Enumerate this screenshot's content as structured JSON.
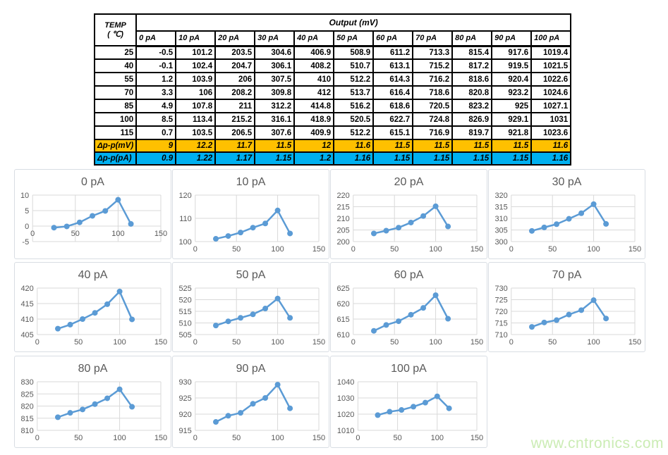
{
  "table": {
    "corner_header": {
      "line1": "TEMP",
      "line2": "( ℃)"
    },
    "output_header": "Output (mV)",
    "column_headers": [
      "0 pA",
      "10 pA",
      "20 pA",
      "30 pA",
      "40 pA",
      "50 pA",
      "60 pA",
      "70 pA",
      "80 pA",
      "90 pA",
      "100 pA"
    ],
    "rows": [
      {
        "temp": "25",
        "values": [
          "-0.5",
          "101.2",
          "203.5",
          "304.6",
          "406.9",
          "508.9",
          "611.2",
          "713.3",
          "815.4",
          "917.6",
          "1019.4"
        ]
      },
      {
        "temp": "40",
        "values": [
          "-0.1",
          "102.4",
          "204.7",
          "306.1",
          "408.2",
          "510.7",
          "613.1",
          "715.2",
          "817.2",
          "919.5",
          "1021.5"
        ]
      },
      {
        "temp": "55",
        "values": [
          "1.2",
          "103.9",
          "206",
          "307.5",
          "410",
          "512.2",
          "614.3",
          "716.2",
          "818.6",
          "920.4",
          "1022.6"
        ]
      },
      {
        "temp": "70",
        "values": [
          "3.3",
          "106",
          "208.2",
          "309.8",
          "412",
          "513.7",
          "616.4",
          "718.6",
          "820.8",
          "923.2",
          "1024.6"
        ]
      },
      {
        "temp": "85",
        "values": [
          "4.9",
          "107.8",
          "211",
          "312.2",
          "414.8",
          "516.2",
          "618.6",
          "720.5",
          "823.2",
          "925",
          "1027.1"
        ]
      },
      {
        "temp": "100",
        "values": [
          "8.5",
          "113.4",
          "215.2",
          "316.1",
          "418.9",
          "520.5",
          "622.7",
          "724.8",
          "826.9",
          "929.1",
          "1031"
        ]
      },
      {
        "temp": "115",
        "values": [
          "0.7",
          "103.5",
          "206.5",
          "307.6",
          "409.9",
          "512.2",
          "615.1",
          "716.9",
          "819.7",
          "921.8",
          "1023.6"
        ]
      }
    ],
    "delta_mv": {
      "label": "Δp-p(mV)",
      "values": [
        "9",
        "12.2",
        "11.7",
        "11.5",
        "12",
        "11.6",
        "11.5",
        "11.5",
        "11.5",
        "11.5",
        "11.6"
      ]
    },
    "delta_pa": {
      "label": "Δp-p(pA)",
      "values": [
        "0.9",
        "1.22",
        "1.17",
        "1.15",
        "1.2",
        "1.16",
        "1.15",
        "1.15",
        "1.15",
        "1.15",
        "1.16"
      ]
    }
  },
  "colors": {
    "line": "#5B9BD5",
    "marker": "#5B9BD5",
    "grid": "#d9d9d9",
    "tick_text": "#595959",
    "delta_mv_bg": "#FFC000",
    "delta_pa_bg": "#00B0F0",
    "watermark": "#cbecb4"
  },
  "watermark": "www.cntronics.com",
  "chart_data": [
    {
      "type": "line",
      "title": "0 pA",
      "x": [
        25,
        40,
        55,
        70,
        85,
        100,
        115
      ],
      "values": [
        -0.5,
        -0.1,
        1.2,
        3.3,
        4.9,
        8.5,
        0.7
      ],
      "xlim": [
        0,
        150
      ],
      "xticks": [
        0,
        50,
        100,
        150
      ],
      "ylim": [
        -5,
        10
      ],
      "yticks": [
        -5,
        0,
        5,
        10
      ]
    },
    {
      "type": "line",
      "title": "10 pA",
      "x": [
        25,
        40,
        55,
        70,
        85,
        100,
        115
      ],
      "values": [
        101.2,
        102.4,
        103.9,
        106,
        107.8,
        113.4,
        103.5
      ],
      "xlim": [
        0,
        150
      ],
      "xticks": [
        0,
        50,
        100,
        150
      ],
      "ylim": [
        100,
        120
      ],
      "yticks": [
        100,
        110,
        120
      ]
    },
    {
      "type": "line",
      "title": "20 pA",
      "x": [
        25,
        40,
        55,
        70,
        85,
        100,
        115
      ],
      "values": [
        203.5,
        204.7,
        206,
        208.2,
        211,
        215.2,
        206.5
      ],
      "xlim": [
        0,
        150
      ],
      "xticks": [
        0,
        50,
        100,
        150
      ],
      "ylim": [
        200,
        220
      ],
      "yticks": [
        200,
        205,
        210,
        215,
        220
      ]
    },
    {
      "type": "line",
      "title": "30 pA",
      "x": [
        25,
        40,
        55,
        70,
        85,
        100,
        115
      ],
      "values": [
        304.6,
        306.1,
        307.5,
        309.8,
        312.2,
        316.1,
        307.6
      ],
      "xlim": [
        0,
        150
      ],
      "xticks": [
        0,
        50,
        100,
        150
      ],
      "ylim": [
        300,
        320
      ],
      "yticks": [
        300,
        305,
        310,
        315,
        320
      ]
    },
    {
      "type": "line",
      "title": "40 pA",
      "x": [
        25,
        40,
        55,
        70,
        85,
        100,
        115
      ],
      "values": [
        406.9,
        408.2,
        410,
        412,
        414.8,
        418.9,
        409.9
      ],
      "xlim": [
        0,
        150
      ],
      "xticks": [
        0,
        50,
        100,
        150
      ],
      "ylim": [
        405,
        420
      ],
      "yticks": [
        405,
        410,
        415,
        420
      ]
    },
    {
      "type": "line",
      "title": "50 pA",
      "x": [
        25,
        40,
        55,
        70,
        85,
        100,
        115
      ],
      "values": [
        508.9,
        510.7,
        512.2,
        513.7,
        516.2,
        520.5,
        512.2
      ],
      "xlim": [
        0,
        150
      ],
      "xticks": [
        0,
        50,
        100,
        150
      ],
      "ylim": [
        505,
        525
      ],
      "yticks": [
        505,
        510,
        515,
        520,
        525
      ]
    },
    {
      "type": "line",
      "title": "60 pA",
      "x": [
        25,
        40,
        55,
        70,
        85,
        100,
        115
      ],
      "values": [
        611.2,
        613.1,
        614.3,
        616.4,
        618.6,
        622.7,
        615.1
      ],
      "xlim": [
        0,
        150
      ],
      "xticks": [
        0,
        50,
        100,
        150
      ],
      "ylim": [
        610,
        625
      ],
      "yticks": [
        610,
        615,
        620,
        625
      ]
    },
    {
      "type": "line",
      "title": "70 pA",
      "x": [
        25,
        40,
        55,
        70,
        85,
        100,
        115
      ],
      "values": [
        713.3,
        715.2,
        716.2,
        718.6,
        720.5,
        724.8,
        716.9
      ],
      "xlim": [
        0,
        150
      ],
      "xticks": [
        0,
        50,
        100,
        150
      ],
      "ylim": [
        710,
        730
      ],
      "yticks": [
        710,
        715,
        720,
        725,
        730
      ]
    },
    {
      "type": "line",
      "title": "80 pA",
      "x": [
        25,
        40,
        55,
        70,
        85,
        100,
        115
      ],
      "values": [
        815.4,
        817.2,
        818.6,
        820.8,
        823.2,
        826.9,
        819.7
      ],
      "xlim": [
        0,
        150
      ],
      "xticks": [
        0,
        50,
        100,
        150
      ],
      "ylim": [
        810,
        830
      ],
      "yticks": [
        810,
        815,
        820,
        825,
        830
      ]
    },
    {
      "type": "line",
      "title": "90 pA",
      "x": [
        25,
        40,
        55,
        70,
        85,
        100,
        115
      ],
      "values": [
        917.6,
        919.5,
        920.4,
        923.2,
        925,
        929.1,
        921.8
      ],
      "xlim": [
        0,
        150
      ],
      "xticks": [
        0,
        50,
        100,
        150
      ],
      "ylim": [
        915,
        930
      ],
      "yticks": [
        915,
        920,
        925,
        930
      ]
    },
    {
      "type": "line",
      "title": "100 pA",
      "x": [
        25,
        40,
        55,
        70,
        85,
        100,
        115
      ],
      "values": [
        1019.4,
        1021.5,
        1022.6,
        1024.6,
        1027.1,
        1031,
        1023.6
      ],
      "xlim": [
        0,
        150
      ],
      "xticks": [
        0,
        50,
        100,
        150
      ],
      "ylim": [
        1010,
        1040
      ],
      "yticks": [
        1010,
        1020,
        1030,
        1040
      ]
    }
  ]
}
